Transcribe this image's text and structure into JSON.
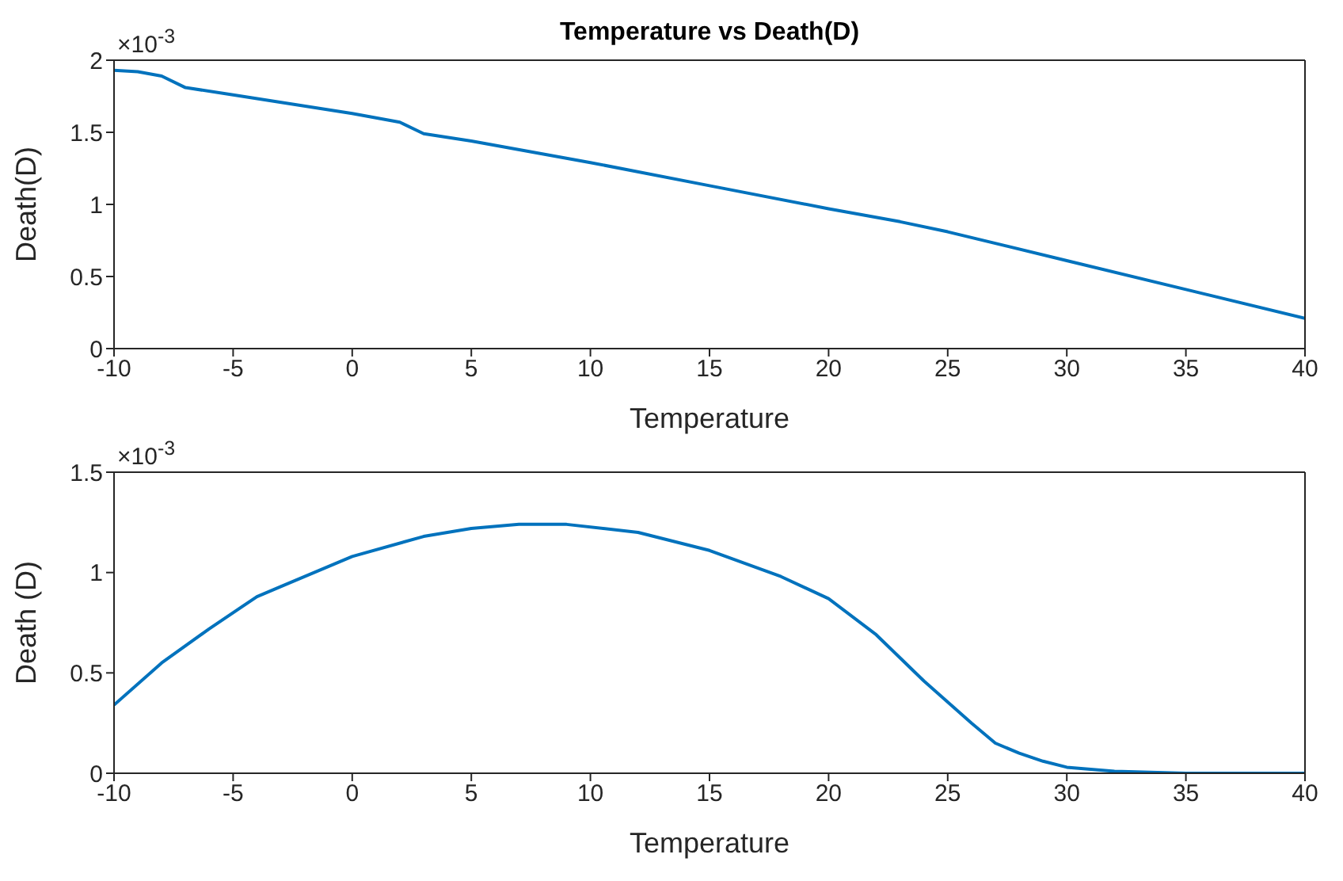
{
  "chart_data": [
    {
      "type": "line",
      "title": "Temperature vs Death(D)",
      "xlabel": "Temperature",
      "ylabel": "Death(D)",
      "annotations": [
        "×10$^{-3}$"
      ],
      "xlim": [
        -10,
        40
      ],
      "xticks": [
        -10,
        -5,
        0,
        5,
        10,
        15,
        20,
        25,
        30,
        35,
        40
      ],
      "ylim": [
        0,
        2
      ],
      "yticks": [
        0,
        0.5,
        1,
        1.5,
        2
      ],
      "grid": false,
      "legend": false,
      "marker": "none",
      "line_style": "solid",
      "x": [
        -10,
        -9,
        -8,
        -7,
        -5,
        0,
        2,
        3,
        5,
        10,
        15,
        20,
        23,
        25,
        30,
        35,
        40
      ],
      "series": [
        {
          "color": "#0072bd",
          "values": [
            1.93,
            1.92,
            1.89,
            1.81,
            1.76,
            1.63,
            1.57,
            1.49,
            1.44,
            1.29,
            1.13,
            0.97,
            0.88,
            0.81,
            0.61,
            0.41,
            0.21
          ]
        }
      ]
    },
    {
      "type": "line",
      "xlabel": "Temperature",
      "ylabel": "Death (D)",
      "annotations": [
        "×10$^{-3}$"
      ],
      "xlim": [
        -10,
        40
      ],
      "xticks": [
        -10,
        -5,
        0,
        5,
        10,
        15,
        20,
        25,
        30,
        35,
        40
      ],
      "ylim": [
        0,
        1.5
      ],
      "yticks": [
        0,
        0.5,
        1,
        1.5
      ],
      "grid": false,
      "legend": false,
      "marker": "none",
      "line_style": "solid",
      "x": [
        -10,
        -8,
        -6,
        -4,
        -3,
        0,
        3,
        5,
        7,
        9,
        12,
        15,
        18,
        20,
        22,
        24,
        26,
        27,
        28,
        29,
        30,
        31,
        32,
        35,
        40
      ],
      "series": [
        {
          "color": "#0072bd",
          "values": [
            0.34,
            0.55,
            0.72,
            0.88,
            0.93,
            1.08,
            1.18,
            1.22,
            1.24,
            1.24,
            1.2,
            1.11,
            0.98,
            0.87,
            0.69,
            0.46,
            0.25,
            0.15,
            0.1,
            0.06,
            0.03,
            0.02,
            0.01,
            0,
            0
          ]
        }
      ]
    }
  ]
}
